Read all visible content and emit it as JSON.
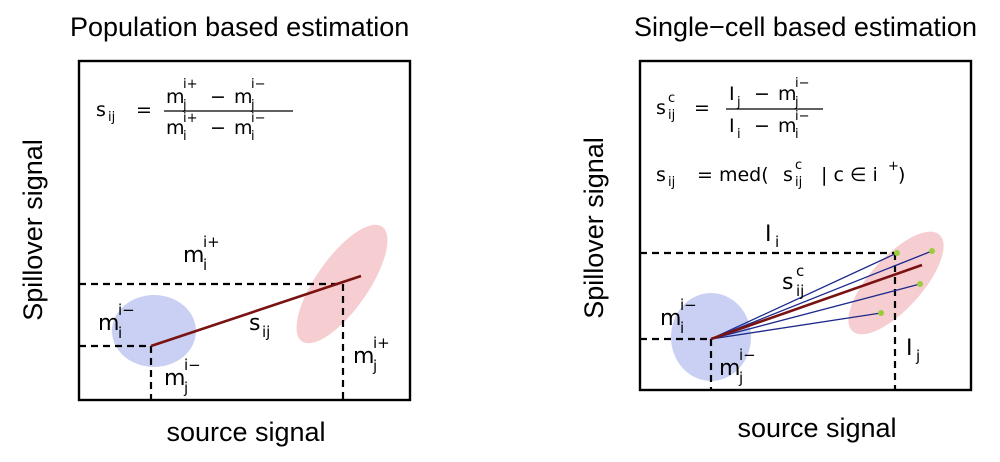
{
  "left_panel": {
    "title": "Population based estimation",
    "ylabel": "Spillover signal",
    "xlabel": "source signal",
    "formula": {
      "lhs_base": "s",
      "lhs_sub": "ij",
      "eq": "=",
      "num": "m",
      "den": "m",
      "sub_j": "j",
      "sub_i": "i",
      "sup_pos": "i+",
      "sup_neg": "i−",
      "minus": "−"
    },
    "labels": {
      "m_i_pos_base": "m",
      "m_i_pos_sub": "i",
      "m_i_pos_sup": "i+",
      "m_i_neg_base": "m",
      "m_i_neg_sub": "i",
      "m_i_neg_sup": "i−",
      "m_j_neg_base": "m",
      "m_j_neg_sub": "j",
      "m_j_neg_sup": "i−",
      "m_j_pos_base": "m",
      "m_j_pos_sub": "j",
      "m_j_pos_sup": "i+",
      "s_base": "s",
      "s_sub": "ij"
    }
  },
  "right_panel": {
    "title": "Single−cell based estimation",
    "ylabel": "Spillover signal",
    "xlabel": "source signal",
    "formula1": {
      "lhs_base": "s",
      "lhs_sub": "ij",
      "lhs_sup": "c",
      "eq": "=",
      "num_a": "I",
      "num_a_sub": "j",
      "num_b": "m",
      "num_b_sub": "j",
      "num_b_sup": "i−",
      "den_a": "I",
      "den_a_sub": "i",
      "den_b": "m",
      "den_b_sub": "i",
      "den_b_sup": "i−",
      "minus": "−"
    },
    "formula2": {
      "lhs_base": "s",
      "lhs_sub": "ij",
      "eq": "= med(",
      "inner_base": "s",
      "inner_sub": "ij",
      "inner_sup": "c",
      "cond": "| c ∈ i",
      "cond_sup": "+",
      "close": ")"
    },
    "labels": {
      "I_i_base": "I",
      "I_i_sub": "i",
      "I_j_base": "I",
      "I_j_sub": "j",
      "m_i_neg_base": "m",
      "m_i_neg_sub": "i",
      "m_i_neg_sup": "i−",
      "m_j_neg_base": "m",
      "m_j_neg_sub": "j",
      "m_j_neg_sup": "i−",
      "s_c_base": "s",
      "s_c_sub": "ij",
      "s_c_sup": "c"
    }
  },
  "colors": {
    "neg_population": "#c9d0f3",
    "neg_population_edge": "#b3bcec",
    "pos_population": "#f6cdd0",
    "pos_population_edge": "#ecb4b9",
    "estimate_line": "#7a1212",
    "cell_lines": "#1c2a8c",
    "cell_points": "#9ccc3c",
    "s_label": "#7a1212",
    "s_c_label": "#1c2a8c"
  }
}
